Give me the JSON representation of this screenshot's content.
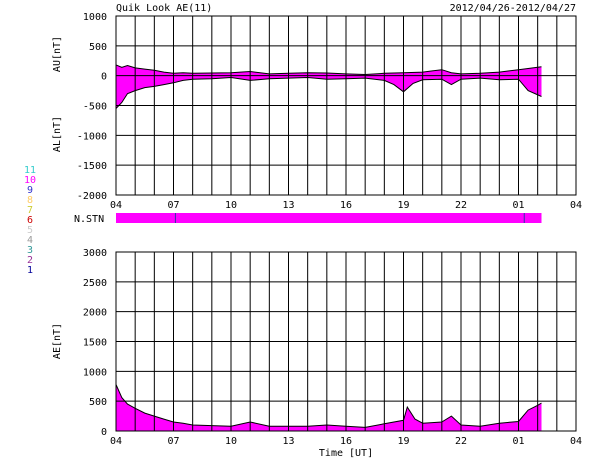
{
  "header": {
    "title": "Quik Look AE(11)",
    "date_range": "2012/04/26-2012/04/27"
  },
  "station_legend": [
    {
      "label": "11",
      "color": "#33cccc"
    },
    {
      "label": "10",
      "color": "#ff00ff"
    },
    {
      "label": "9",
      "color": "#3333cc"
    },
    {
      "label": "8",
      "color": "#ffcc66"
    },
    {
      "label": "7",
      "color": "#cccc33"
    },
    {
      "label": "6",
      "color": "#cc0000"
    },
    {
      "label": "5",
      "color": "#cccccc"
    },
    {
      "label": "4",
      "color": "#999999"
    },
    {
      "label": "3",
      "color": "#339999"
    },
    {
      "label": "2",
      "color": "#993399"
    },
    {
      "label": "1",
      "color": "#000099"
    }
  ],
  "colors": {
    "fill": "#ff00ff",
    "bar_tick": "#3333aa",
    "grid": "#000000"
  },
  "nstn": {
    "label": "N.STN",
    "start_hour": 0,
    "end_hour": 22.2,
    "markers": [
      3.1,
      21.3
    ]
  },
  "chart_data": [
    {
      "type": "area",
      "name": "AU/AL",
      "ylabel_upper": "AU[nT]",
      "ylabel_lower": "AL[nT]",
      "x_unit": "hours from 2012-04-26 04:00 UT",
      "xlim": [
        0,
        24
      ],
      "ylim": [
        -2000,
        1000
      ],
      "yticks": [
        1000,
        500,
        0,
        -500,
        -1000,
        -1500,
        -2000
      ],
      "xtick_labels": [
        "04",
        "07",
        "10",
        "13",
        "16",
        "19",
        "22",
        "01",
        "04"
      ],
      "au": [
        [
          0,
          180
        ],
        [
          0.3,
          140
        ],
        [
          0.6,
          170
        ],
        [
          1,
          130
        ],
        [
          1.5,
          110
        ],
        [
          2,
          90
        ],
        [
          2.5,
          60
        ],
        [
          3,
          40
        ],
        [
          3.5,
          50
        ],
        [
          4,
          40
        ],
        [
          5,
          45
        ],
        [
          6,
          50
        ],
        [
          7,
          70
        ],
        [
          8,
          30
        ],
        [
          9,
          40
        ],
        [
          10,
          50
        ],
        [
          11,
          45
        ],
        [
          12,
          30
        ],
        [
          13,
          20
        ],
        [
          14,
          40
        ],
        [
          15,
          50
        ],
        [
          16,
          60
        ],
        [
          16.5,
          80
        ],
        [
          17,
          100
        ],
        [
          17.5,
          50
        ],
        [
          18,
          30
        ],
        [
          19,
          40
        ],
        [
          20,
          60
        ],
        [
          21,
          100
        ],
        [
          21.5,
          120
        ],
        [
          22.2,
          150
        ]
      ],
      "al": [
        [
          0,
          -550
        ],
        [
          0.3,
          -450
        ],
        [
          0.6,
          -300
        ],
        [
          1,
          -250
        ],
        [
          1.5,
          -200
        ],
        [
          2,
          -180
        ],
        [
          2.5,
          -150
        ],
        [
          3,
          -120
        ],
        [
          3.5,
          -80
        ],
        [
          4,
          -60
        ],
        [
          5,
          -50
        ],
        [
          6,
          -30
        ],
        [
          7,
          -80
        ],
        [
          8,
          -50
        ],
        [
          9,
          -40
        ],
        [
          10,
          -30
        ],
        [
          11,
          -60
        ],
        [
          12,
          -50
        ],
        [
          13,
          -40
        ],
        [
          14,
          -80
        ],
        [
          14.5,
          -150
        ],
        [
          15,
          -270
        ],
        [
          15.5,
          -130
        ],
        [
          16,
          -70
        ],
        [
          17,
          -60
        ],
        [
          17.5,
          -150
        ],
        [
          18,
          -60
        ],
        [
          19,
          -40
        ],
        [
          20,
          -70
        ],
        [
          21,
          -60
        ],
        [
          21.5,
          -250
        ],
        [
          22.2,
          -350
        ]
      ]
    },
    {
      "type": "area",
      "name": "AE",
      "ylabel": "AE[nT]",
      "xlabel": "Time [UT]",
      "x_unit": "hours from 2012-04-26 04:00 UT",
      "xlim": [
        0,
        24
      ],
      "ylim": [
        0,
        3000
      ],
      "yticks": [
        3000,
        2500,
        2000,
        1500,
        1000,
        500,
        0
      ],
      "xtick_labels": [
        "04",
        "07",
        "10",
        "13",
        "16",
        "19",
        "22",
        "01",
        "04"
      ],
      "ae": [
        [
          0,
          780
        ],
        [
          0.3,
          560
        ],
        [
          0.6,
          450
        ],
        [
          1,
          380
        ],
        [
          1.5,
          300
        ],
        [
          2,
          250
        ],
        [
          2.5,
          200
        ],
        [
          3,
          150
        ],
        [
          3.5,
          130
        ],
        [
          4,
          100
        ],
        [
          5,
          90
        ],
        [
          6,
          80
        ],
        [
          7,
          150
        ],
        [
          8,
          80
        ],
        [
          9,
          80
        ],
        [
          10,
          80
        ],
        [
          11,
          100
        ],
        [
          12,
          80
        ],
        [
          13,
          60
        ],
        [
          14,
          120
        ],
        [
          15,
          180
        ],
        [
          15.2,
          400
        ],
        [
          15.6,
          200
        ],
        [
          16,
          130
        ],
        [
          17,
          150
        ],
        [
          17.5,
          250
        ],
        [
          18,
          100
        ],
        [
          19,
          80
        ],
        [
          20,
          130
        ],
        [
          21,
          160
        ],
        [
          21.5,
          350
        ],
        [
          22,
          430
        ],
        [
          22.2,
          470
        ]
      ]
    }
  ]
}
